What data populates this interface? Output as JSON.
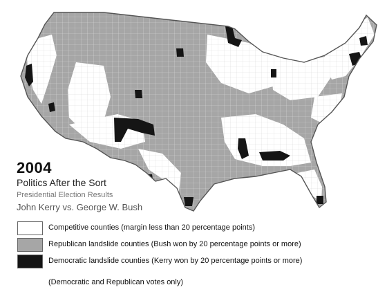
{
  "colors": {
    "competitive": "#ffffff",
    "republican": "#a6a6a6",
    "democratic": "#151515",
    "border": "#555555",
    "grid": "#d0d0d0"
  },
  "title": {
    "year": "2004",
    "subtitle": "Politics After the Sort",
    "caption": "Presidential Election Results",
    "matchup": "John Kerry vs. George W. Bush"
  },
  "legend": [
    {
      "key": "competitive",
      "label": "Competitive counties (margin less than 20 percentage points)"
    },
    {
      "key": "republican",
      "label": "Republican landslide counties (Bush won by 20 percentage points or more)"
    },
    {
      "key": "democratic",
      "label": "Democratic landslide counties (Kerry won by 20 percentage points or more)"
    }
  ],
  "footnote": "(Democratic and Republican votes only)"
}
